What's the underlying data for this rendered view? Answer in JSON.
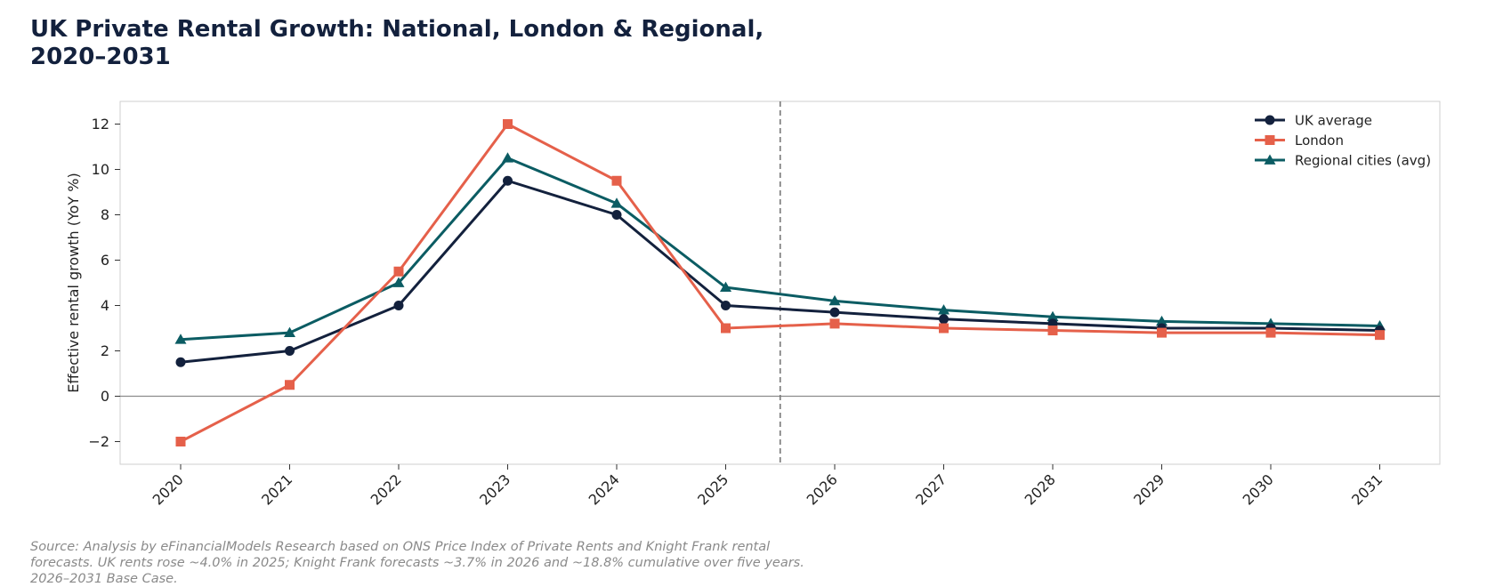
{
  "title": "UK Private Rental Growth: National, London & Regional, 2020–2031",
  "source_note": "Source: Analysis by eFinancialModels Research based on ONS Price Index of Private Rents and Knight Frank rental forecasts. UK rents rose ~4.0% in 2025; Knight Frank forecasts ~3.7% in 2026 and ~18.8% cumulative over five years. 2026–2031 Base Case.",
  "chart_data": {
    "type": "line",
    "title": "UK Private Rental Growth: National, London & Regional, 2020–2031",
    "xlabel": "",
    "ylabel": "Effective rental growth (YoY %)",
    "x": [
      "2020",
      "2021",
      "2022",
      "2023",
      "2024",
      "2025",
      "2026",
      "2027",
      "2028",
      "2029",
      "2030",
      "2031"
    ],
    "ylim": [
      -3,
      13
    ],
    "yticks": [
      -2,
      0,
      2,
      4,
      6,
      8,
      10,
      12
    ],
    "ytick_labels": [
      "−2",
      "0",
      "2",
      "4",
      "6",
      "8",
      "10",
      "12"
    ],
    "forecast_divider_x": 2025.5,
    "zero_line": true,
    "grid": false,
    "legend_position": "top-right",
    "series": [
      {
        "name": "UK average",
        "color": "#13213d",
        "marker": "circle",
        "values": [
          1.5,
          2.0,
          4.0,
          9.5,
          8.0,
          4.0,
          3.7,
          3.4,
          3.2,
          3.0,
          3.0,
          2.9
        ]
      },
      {
        "name": "London",
        "color": "#e5604a",
        "marker": "square",
        "values": [
          -2.0,
          0.5,
          5.5,
          12.0,
          9.5,
          3.0,
          3.2,
          3.0,
          2.9,
          2.8,
          2.8,
          2.7
        ]
      },
      {
        "name": "Regional cities (avg)",
        "color": "#0b5c63",
        "marker": "triangle",
        "values": [
          2.5,
          2.8,
          5.0,
          10.5,
          8.5,
          4.8,
          4.2,
          3.8,
          3.5,
          3.3,
          3.2,
          3.1
        ]
      }
    ]
  }
}
